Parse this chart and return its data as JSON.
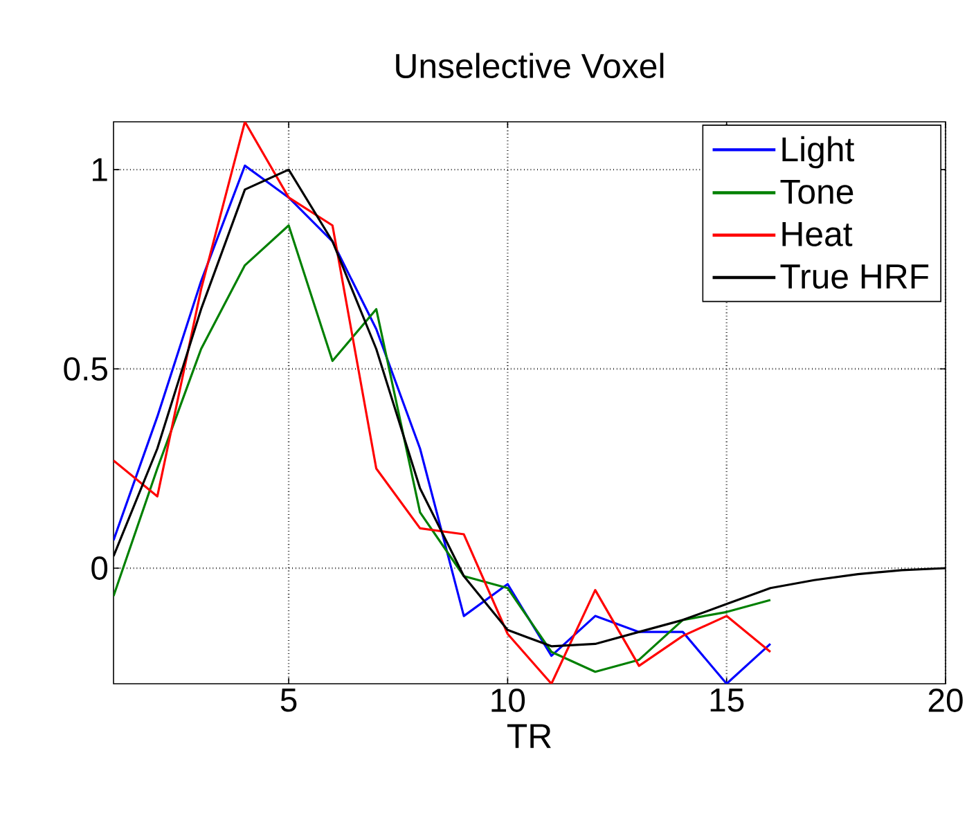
{
  "chart_data": {
    "type": "line",
    "title": "Unselective Voxel",
    "xlabel": "TR",
    "x": [
      1,
      2,
      3,
      4,
      5,
      6,
      7,
      8,
      9,
      10,
      11,
      12,
      13,
      14,
      15,
      16,
      17,
      18,
      19,
      20
    ],
    "series": [
      {
        "name": "Light",
        "color": "#0000ff",
        "x": [
          1,
          2,
          3,
          4,
          5,
          6,
          7,
          8,
          9,
          10,
          11,
          12,
          13,
          14,
          15,
          16
        ],
        "values": [
          0.07,
          0.38,
          0.72,
          1.01,
          0.93,
          0.82,
          0.6,
          0.3,
          -0.12,
          -0.04,
          -0.22,
          -0.12,
          -0.16,
          -0.16,
          -0.29,
          -0.19
        ]
      },
      {
        "name": "Tone",
        "color": "#008000",
        "x": [
          1,
          2,
          3,
          4,
          5,
          6,
          7,
          8,
          9,
          10,
          11,
          12,
          13,
          14,
          15,
          16
        ],
        "values": [
          -0.07,
          0.25,
          0.55,
          0.76,
          0.86,
          0.52,
          0.65,
          0.14,
          -0.02,
          -0.05,
          -0.21,
          -0.26,
          -0.23,
          -0.13,
          -0.11,
          -0.08
        ]
      },
      {
        "name": "Heat",
        "color": "#ff0000",
        "x": [
          1,
          2,
          3,
          4,
          5,
          6,
          7,
          8,
          9,
          10,
          11,
          12,
          13,
          14,
          15,
          16
        ],
        "values": [
          0.27,
          0.18,
          0.7,
          1.12,
          0.93,
          0.86,
          0.25,
          0.1,
          0.085,
          -0.165,
          -0.29,
          -0.055,
          -0.245,
          -0.17,
          -0.12,
          -0.21
        ]
      },
      {
        "name": "True HRF",
        "color": "#000000",
        "values": [
          0.03,
          0.3,
          0.65,
          0.95,
          1.0,
          0.82,
          0.55,
          0.2,
          -0.02,
          -0.155,
          -0.196,
          -0.19,
          -0.16,
          -0.13,
          -0.09,
          -0.05,
          -0.03,
          -0.015,
          -0.005,
          0
        ]
      }
    ],
    "xlim": [
      1,
      20
    ],
    "ylim": [
      -0.29,
      1.12
    ],
    "xticks": [
      5,
      10,
      15,
      20
    ],
    "yticks": [
      0,
      0.5,
      1
    ],
    "grid": true,
    "legend": "top right",
    "marker": "none",
    "line_style": "solid"
  }
}
